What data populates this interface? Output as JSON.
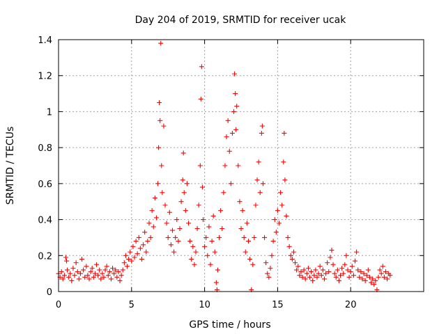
{
  "chart_data": {
    "type": "scatter",
    "title": "Day 204 of 2019, SRMTID for receiver ucak",
    "xlabel": "GPS time / hours",
    "ylabel": "SRMTID / TECUs",
    "xlim": [
      0,
      25
    ],
    "ylim": [
      0,
      1.4
    ],
    "xticks": [
      0,
      5,
      10,
      15,
      20
    ],
    "xtick_labels": [
      "0",
      "5",
      "10",
      "15",
      "20"
    ],
    "yticks": [
      0,
      0.2,
      0.4,
      0.6,
      0.8,
      1.0,
      1.2,
      1.4
    ],
    "ytick_labels": [
      "0",
      "0.2",
      "0.4",
      "0.6",
      "0.8",
      "1",
      "1.2",
      "1.4"
    ],
    "grid": true,
    "marker": "+",
    "marker_color": "#ff0000",
    "series": [
      {
        "name": "SRMTID",
        "points": [
          [
            0.0,
            0.1
          ],
          [
            0.1,
            0.08
          ],
          [
            0.2,
            0.11
          ],
          [
            0.3,
            0.07
          ],
          [
            0.4,
            0.09
          ],
          [
            0.5,
            0.19
          ],
          [
            0.55,
            0.17
          ],
          [
            0.6,
            0.12
          ],
          [
            0.7,
            0.08
          ],
          [
            0.8,
            0.1
          ],
          [
            0.9,
            0.06
          ],
          [
            1.0,
            0.13
          ],
          [
            1.1,
            0.09
          ],
          [
            1.2,
            0.16
          ],
          [
            1.3,
            0.11
          ],
          [
            1.4,
            0.07
          ],
          [
            1.5,
            0.1
          ],
          [
            1.6,
            0.18
          ],
          [
            1.7,
            0.12
          ],
          [
            1.8,
            0.08
          ],
          [
            1.9,
            0.14
          ],
          [
            2.0,
            0.09
          ],
          [
            2.1,
            0.07
          ],
          [
            2.2,
            0.11
          ],
          [
            2.3,
            0.13
          ],
          [
            2.4,
            0.08
          ],
          [
            2.5,
            0.1
          ],
          [
            2.6,
            0.15
          ],
          [
            2.7,
            0.09
          ],
          [
            2.8,
            0.12
          ],
          [
            2.9,
            0.07
          ],
          [
            3.0,
            0.1
          ],
          [
            3.1,
            0.08
          ],
          [
            3.2,
            0.12
          ],
          [
            3.3,
            0.14
          ],
          [
            3.4,
            0.09
          ],
          [
            3.5,
            0.11
          ],
          [
            3.6,
            0.07
          ],
          [
            3.7,
            0.13
          ],
          [
            3.8,
            0.1
          ],
          [
            3.9,
            0.12
          ],
          [
            4.0,
            0.08
          ],
          [
            4.1,
            0.11
          ],
          [
            4.2,
            0.06
          ],
          [
            4.3,
            0.09
          ],
          [
            4.4,
            0.12
          ],
          [
            4.5,
            0.16
          ],
          [
            4.6,
            0.2
          ],
          [
            4.7,
            0.14
          ],
          [
            4.8,
            0.18
          ],
          [
            4.9,
            0.22
          ],
          [
            5.0,
            0.17
          ],
          [
            5.1,
            0.25
          ],
          [
            5.2,
            0.19
          ],
          [
            5.3,
            0.28
          ],
          [
            5.4,
            0.21
          ],
          [
            5.5,
            0.3
          ],
          [
            5.6,
            0.24
          ],
          [
            5.7,
            0.18
          ],
          [
            5.8,
            0.26
          ],
          [
            5.9,
            0.33
          ],
          [
            6.0,
            0.22
          ],
          [
            6.1,
            0.28
          ],
          [
            6.2,
            0.38
          ],
          [
            6.3,
            0.3
          ],
          [
            6.4,
            0.45
          ],
          [
            6.5,
            0.36
          ],
          [
            6.6,
            0.52
          ],
          [
            6.7,
            0.41
          ],
          [
            6.8,
            0.6
          ],
          [
            6.85,
            0.8
          ],
          [
            6.9,
            1.05
          ],
          [
            6.95,
            0.95
          ],
          [
            7.0,
            1.38
          ],
          [
            7.05,
            0.7
          ],
          [
            7.1,
            0.55
          ],
          [
            7.2,
            0.92
          ],
          [
            7.3,
            0.48
          ],
          [
            7.4,
            0.38
          ],
          [
            7.5,
            0.3
          ],
          [
            7.6,
            0.44
          ],
          [
            7.7,
            0.26
          ],
          [
            7.8,
            0.34
          ],
          [
            7.9,
            0.22
          ],
          [
            8.0,
            0.3
          ],
          [
            8.1,
            0.4
          ],
          [
            8.2,
            0.28
          ],
          [
            8.3,
            0.35
          ],
          [
            8.4,
            0.5
          ],
          [
            8.5,
            0.62
          ],
          [
            8.55,
            0.77
          ],
          [
            8.6,
            0.55
          ],
          [
            8.7,
            0.45
          ],
          [
            8.8,
            0.6
          ],
          [
            8.9,
            0.38
          ],
          [
            9.0,
            0.28
          ],
          [
            9.1,
            0.18
          ],
          [
            9.2,
            0.25
          ],
          [
            9.3,
            0.15
          ],
          [
            9.4,
            0.22
          ],
          [
            9.5,
            0.35
          ],
          [
            9.6,
            0.48
          ],
          [
            9.7,
            0.7
          ],
          [
            9.75,
            1.07
          ],
          [
            9.8,
            1.25
          ],
          [
            9.85,
            0.58
          ],
          [
            9.9,
            0.4
          ],
          [
            10.0,
            0.25
          ],
          [
            10.1,
            0.3
          ],
          [
            10.2,
            0.2
          ],
          [
            10.3,
            0.36
          ],
          [
            10.4,
            0.15
          ],
          [
            10.5,
            0.28
          ],
          [
            10.6,
            0.42
          ],
          [
            10.7,
            0.22
          ],
          [
            10.8,
            0.05
          ],
          [
            10.85,
            0.01
          ],
          [
            10.9,
            0.12
          ],
          [
            11.0,
            0.3
          ],
          [
            11.1,
            0.45
          ],
          [
            11.2,
            0.35
          ],
          [
            11.3,
            0.55
          ],
          [
            11.4,
            0.7
          ],
          [
            11.5,
            0.86
          ],
          [
            11.6,
            0.95
          ],
          [
            11.7,
            0.78
          ],
          [
            11.8,
            0.6
          ],
          [
            11.9,
            0.88
          ],
          [
            12.0,
            1.0
          ],
          [
            12.05,
            1.21
          ],
          [
            12.1,
            1.1
          ],
          [
            12.15,
            0.9
          ],
          [
            12.2,
            1.03
          ],
          [
            12.3,
            0.7
          ],
          [
            12.4,
            0.5
          ],
          [
            12.5,
            0.35
          ],
          [
            12.6,
            0.45
          ],
          [
            12.7,
            0.3
          ],
          [
            12.8,
            0.22
          ],
          [
            12.9,
            0.38
          ],
          [
            13.0,
            0.28
          ],
          [
            13.1,
            0.18
          ],
          [
            13.2,
            0.01
          ],
          [
            13.3,
            0.15
          ],
          [
            13.4,
            0.3
          ],
          [
            13.5,
            0.48
          ],
          [
            13.6,
            0.62
          ],
          [
            13.7,
            0.72
          ],
          [
            13.8,
            0.55
          ],
          [
            13.9,
            0.88
          ],
          [
            13.95,
            0.92
          ],
          [
            14.0,
            0.6
          ],
          [
            14.1,
            0.3
          ],
          [
            14.2,
            0.16
          ],
          [
            14.3,
            0.1
          ],
          [
            14.4,
            0.08
          ],
          [
            14.5,
            0.13
          ],
          [
            14.6,
            0.2
          ],
          [
            14.7,
            0.28
          ],
          [
            14.8,
            0.4
          ],
          [
            14.9,
            0.33
          ],
          [
            15.0,
            0.45
          ],
          [
            15.1,
            0.38
          ],
          [
            15.2,
            0.55
          ],
          [
            15.3,
            0.48
          ],
          [
            15.4,
            0.72
          ],
          [
            15.45,
            0.88
          ],
          [
            15.5,
            0.62
          ],
          [
            15.6,
            0.42
          ],
          [
            15.7,
            0.3
          ],
          [
            15.8,
            0.25
          ],
          [
            15.9,
            0.2
          ],
          [
            16.0,
            0.18
          ],
          [
            16.1,
            0.22
          ],
          [
            16.2,
            0.16
          ],
          [
            16.3,
            0.12
          ],
          [
            16.4,
            0.14
          ],
          [
            16.5,
            0.09
          ],
          [
            16.6,
            0.11
          ],
          [
            16.7,
            0.08
          ],
          [
            16.8,
            0.12
          ],
          [
            16.9,
            0.07
          ],
          [
            17.0,
            0.1
          ],
          [
            17.1,
            0.13
          ],
          [
            17.2,
            0.08
          ],
          [
            17.3,
            0.11
          ],
          [
            17.4,
            0.06
          ],
          [
            17.5,
            0.09
          ],
          [
            17.6,
            0.12
          ],
          [
            17.7,
            0.08
          ],
          [
            17.8,
            0.1
          ],
          [
            17.9,
            0.14
          ],
          [
            18.0,
            0.09
          ],
          [
            18.1,
            0.12
          ],
          [
            18.2,
            0.07
          ],
          [
            18.3,
            0.1
          ],
          [
            18.4,
            0.16
          ],
          [
            18.5,
            0.11
          ],
          [
            18.6,
            0.19
          ],
          [
            18.7,
            0.23
          ],
          [
            18.8,
            0.15
          ],
          [
            18.9,
            0.1
          ],
          [
            19.0,
            0.08
          ],
          [
            19.1,
            0.12
          ],
          [
            19.2,
            0.06
          ],
          [
            19.3,
            0.09
          ],
          [
            19.4,
            0.13
          ],
          [
            19.5,
            0.1
          ],
          [
            19.6,
            0.15
          ],
          [
            19.7,
            0.2
          ],
          [
            19.8,
            0.12
          ],
          [
            19.9,
            0.08
          ],
          [
            20.0,
            0.11
          ],
          [
            20.1,
            0.14
          ],
          [
            20.2,
            0.09
          ],
          [
            20.3,
            0.17
          ],
          [
            20.4,
            0.22
          ],
          [
            20.5,
            0.12
          ],
          [
            20.6,
            0.08
          ],
          [
            20.7,
            0.11
          ],
          [
            20.8,
            0.07
          ],
          [
            20.9,
            0.1
          ],
          [
            21.0,
            0.06
          ],
          [
            21.1,
            0.09
          ],
          [
            21.2,
            0.12
          ],
          [
            21.3,
            0.08
          ],
          [
            21.4,
            0.05
          ],
          [
            21.5,
            0.07
          ],
          [
            21.6,
            0.04
          ],
          [
            21.7,
            0.06
          ],
          [
            21.8,
            0.01
          ],
          [
            21.9,
            0.08
          ],
          [
            22.0,
            0.12
          ],
          [
            22.1,
            0.1
          ],
          [
            22.2,
            0.14
          ],
          [
            22.3,
            0.08
          ],
          [
            22.4,
            0.11
          ],
          [
            22.5,
            0.07
          ],
          [
            22.6,
            0.1
          ],
          [
            22.7,
            0.09
          ]
        ]
      }
    ]
  }
}
